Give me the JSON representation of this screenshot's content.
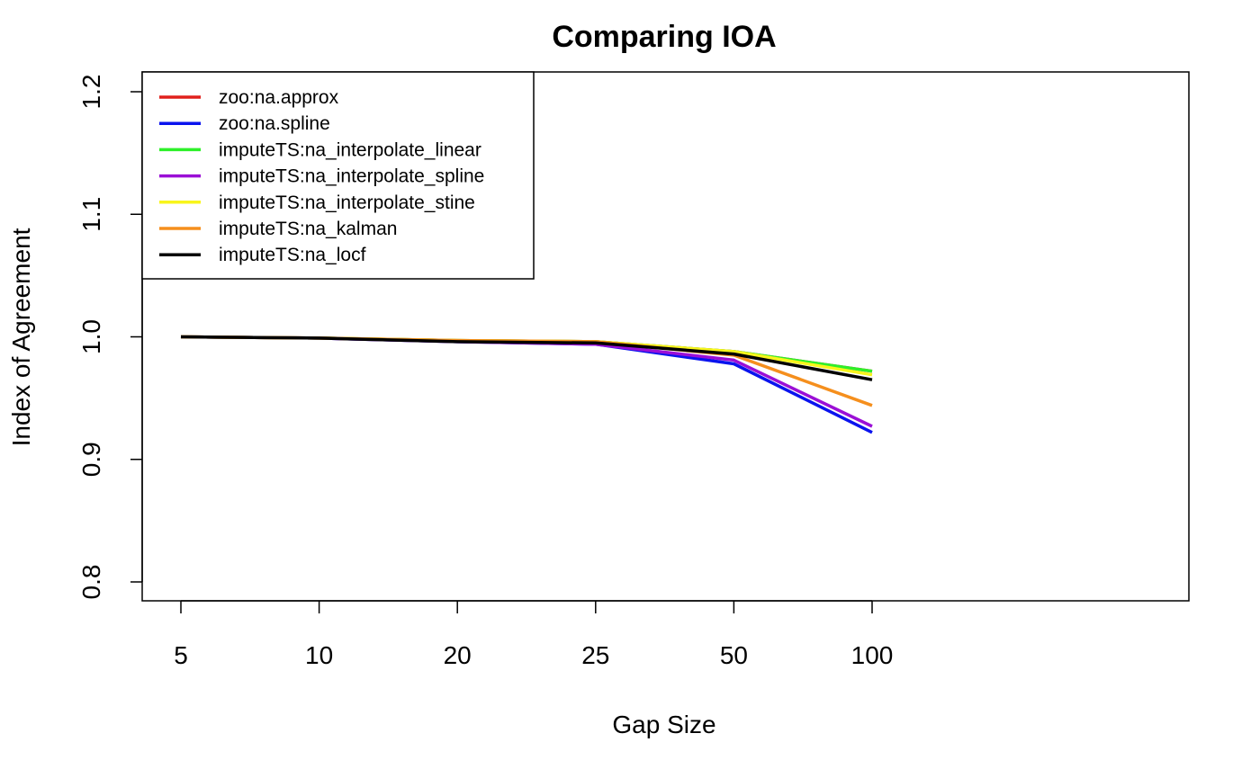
{
  "chart_data": {
    "type": "line",
    "title": "Comparing IOA",
    "xlabel": "Gap Size",
    "ylabel": "Index of Agreement",
    "categories": [
      "5",
      "10",
      "20",
      "25",
      "50",
      "100"
    ],
    "ylim": [
      0.8,
      1.2
    ],
    "y_ticks": [
      "0.8",
      "0.9",
      "1.0",
      "1.1",
      "1.2"
    ],
    "grid": false,
    "legend_position": "top-left",
    "series": [
      {
        "name": "zoo:na.approx",
        "color": "#e0201c",
        "values": [
          1.0,
          0.999,
          0.997,
          0.996,
          0.988,
          0.972
        ]
      },
      {
        "name": "zoo:na.spline",
        "color": "#0a13ee",
        "values": [
          1.0,
          0.999,
          0.996,
          0.994,
          0.978,
          0.922
        ]
      },
      {
        "name": "imputeTS:na_interpolate_linear",
        "color": "#2ef02a",
        "values": [
          1.0,
          0.999,
          0.997,
          0.996,
          0.988,
          0.972
        ]
      },
      {
        "name": "imputeTS:na_interpolate_spline",
        "color": "#9b0fd6",
        "values": [
          1.0,
          0.999,
          0.996,
          0.994,
          0.981,
          0.927
        ]
      },
      {
        "name": "imputeTS:na_interpolate_stine",
        "color": "#f8f51c",
        "values": [
          1.0,
          0.999,
          0.997,
          0.996,
          0.988,
          0.969
        ]
      },
      {
        "name": "imputeTS:na_kalman",
        "color": "#f58f1d",
        "values": [
          1.0,
          0.999,
          0.997,
          0.996,
          0.985,
          0.944
        ]
      },
      {
        "name": "imputeTS:na_locf",
        "color": "#000000",
        "values": [
          1.0,
          0.999,
          0.996,
          0.995,
          0.986,
          0.965
        ]
      }
    ]
  }
}
